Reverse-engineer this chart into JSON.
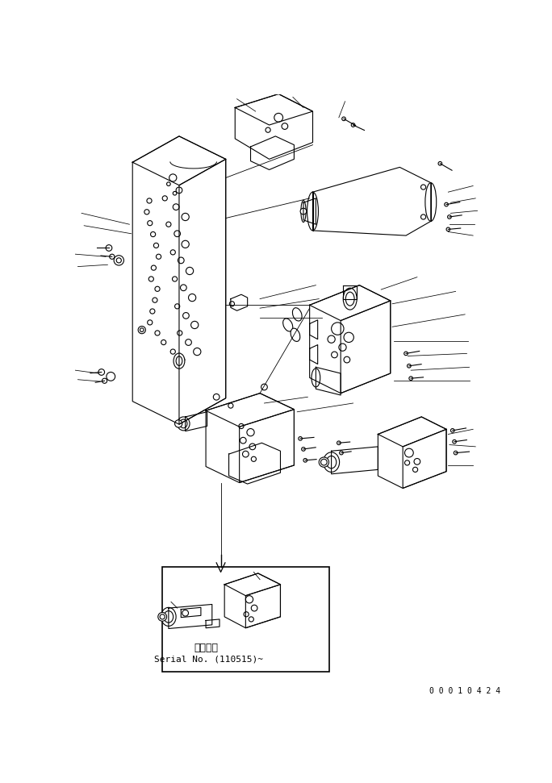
{
  "bg_color": "#ffffff",
  "line_color": "#000000",
  "fig_width": 6.84,
  "fig_height": 9.71,
  "dpi": 100,
  "bottom_text_line1": "適用号機",
  "bottom_text_line2": "Serial No. (110515)~",
  "corner_text": "0 0 0 1 0 4 2 4"
}
